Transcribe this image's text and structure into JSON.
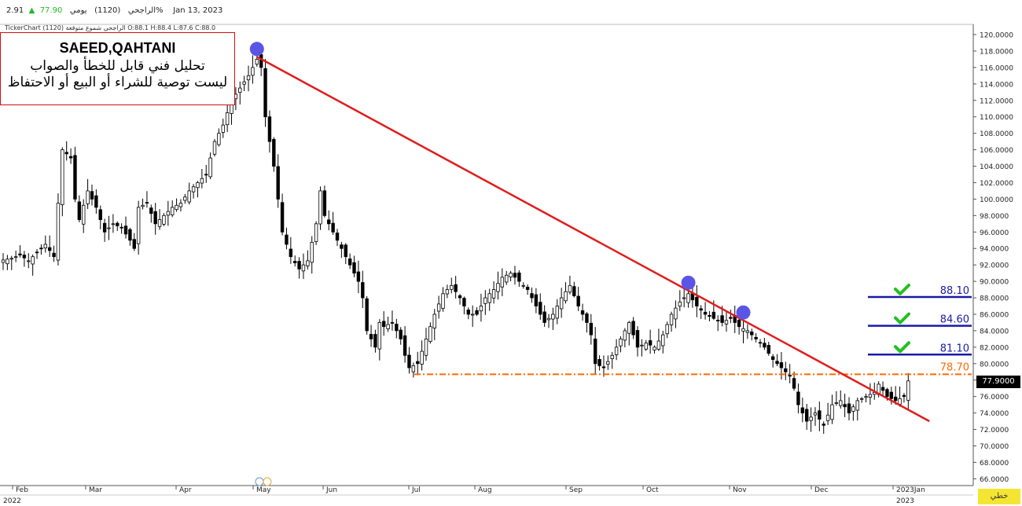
{
  "header": {
    "name": "الراجحي",
    "code": "(1120)",
    "period": "يومي",
    "price": "77.90",
    "change": "2.91%",
    "date": "Jan 13, 2023",
    "subtitle": "TickerChart الراجحي شموع متوقعة (1120) O:88.1 H:88.4 L:87.6 C:88.0",
    "up_color": "#22b822"
  },
  "note": {
    "line1": "SAEED,QAHTANI",
    "line2": "تحليل فني قابل للخطأ والصواب",
    "line3": "ليست توصية للشراء أو البيع أو الاحتفاظ"
  },
  "badges": {
    "last_price": "77.9000",
    "mode": "خطي"
  },
  "chart_data": {
    "type": "candlestick",
    "y_axis": {
      "min": 65,
      "max": 121,
      "ticks": [
        "120.0000",
        "118.0000",
        "116.0000",
        "114.0000",
        "112.0000",
        "110.0000",
        "108.0000",
        "106.0000",
        "104.0000",
        "102.0000",
        "100.0000",
        "98.0000",
        "96.0000",
        "94.0000",
        "92.0000",
        "90.0000",
        "88.0000",
        "86.0000",
        "84.0000",
        "82.0000",
        "80.0000",
        "78.0000",
        "76.0000",
        "74.0000",
        "72.0000",
        "70.0000",
        "68.0000",
        "66.0000"
      ]
    },
    "x_axis": {
      "months": [
        "Feb",
        "Mar",
        "Apr",
        "May",
        "Jun",
        "Jul",
        "Aug",
        "Sep",
        "Oct",
        "Nov",
        "Dec",
        "2023Jan"
      ],
      "years": [
        "2022",
        "2023"
      ]
    },
    "close_path": [
      [
        0,
        92.6
      ],
      [
        2,
        92.8
      ],
      [
        4,
        93.2
      ],
      [
        6,
        92.5
      ],
      [
        8,
        93.5
      ],
      [
        10,
        94.5
      ],
      [
        12,
        93
      ],
      [
        13,
        99.5
      ],
      [
        14,
        106
      ],
      [
        16,
        105
      ],
      [
        17,
        100
      ],
      [
        18,
        97.5
      ],
      [
        20,
        101
      ],
      [
        22,
        99
      ],
      [
        24,
        96
      ],
      [
        26,
        97
      ],
      [
        28,
        96.5
      ],
      [
        30,
        95
      ],
      [
        31,
        94
      ],
      [
        32,
        99
      ],
      [
        34,
        99.5
      ],
      [
        36,
        97
      ],
      [
        38,
        98
      ],
      [
        40,
        99
      ],
      [
        42,
        99.5
      ],
      [
        44,
        101
      ],
      [
        46,
        102
      ],
      [
        48,
        103
      ],
      [
        50,
        107
      ],
      [
        52,
        109
      ],
      [
        54,
        112
      ],
      [
        56,
        113.5
      ],
      [
        58,
        115
      ],
      [
        60,
        117
      ],
      [
        61,
        116
      ],
      [
        62,
        110
      ],
      [
        63,
        107
      ],
      [
        64,
        104
      ],
      [
        65,
        100
      ],
      [
        66,
        96
      ],
      [
        68,
        93
      ],
      [
        70,
        91.5
      ],
      [
        72,
        92.5
      ],
      [
        74,
        97
      ],
      [
        75,
        101
      ],
      [
        76,
        98
      ],
      [
        78,
        96
      ],
      [
        80,
        94
      ],
      [
        82,
        92
      ],
      [
        84,
        90
      ],
      [
        85,
        88
      ],
      [
        86,
        84
      ],
      [
        88,
        82
      ],
      [
        89,
        85
      ],
      [
        90,
        84.5
      ],
      [
        92,
        85
      ],
      [
        94,
        83
      ],
      [
        95,
        81
      ],
      [
        96,
        79.5
      ],
      [
        98,
        80
      ],
      [
        100,
        83
      ],
      [
        102,
        86
      ],
      [
        104,
        88.5
      ],
      [
        106,
        89.5
      ],
      [
        108,
        88
      ],
      [
        110,
        86
      ],
      [
        112,
        86
      ],
      [
        114,
        88
      ],
      [
        116,
        89
      ],
      [
        118,
        90.5
      ],
      [
        120,
        91
      ],
      [
        122,
        90
      ],
      [
        124,
        89
      ],
      [
        126,
        87
      ],
      [
        128,
        85
      ],
      [
        130,
        86
      ],
      [
        132,
        88
      ],
      [
        134,
        89.5
      ],
      [
        136,
        87
      ],
      [
        138,
        85
      ],
      [
        139,
        83.5
      ],
      [
        140,
        80
      ],
      [
        142,
        79.5
      ],
      [
        144,
        81
      ],
      [
        146,
        83
      ],
      [
        148,
        85
      ],
      [
        150,
        82
      ],
      [
        152,
        82.5
      ],
      [
        154,
        82
      ],
      [
        156,
        83.5
      ],
      [
        158,
        86
      ],
      [
        160,
        87.5
      ],
      [
        162,
        88.5
      ],
      [
        164,
        87
      ],
      [
        166,
        86
      ],
      [
        168,
        85.5
      ],
      [
        170,
        85
      ],
      [
        172,
        85.5
      ],
      [
        174,
        84.5
      ],
      [
        176,
        84
      ],
      [
        178,
        83
      ],
      [
        180,
        82
      ],
      [
        182,
        80.5
      ],
      [
        184,
        79.5
      ],
      [
        186,
        78.5
      ],
      [
        187,
        77
      ],
      [
        188,
        75
      ],
      [
        189,
        74
      ],
      [
        190,
        73
      ],
      [
        192,
        74
      ],
      [
        194,
        72.5
      ],
      [
        196,
        75
      ],
      [
        198,
        75.5
      ],
      [
        200,
        74
      ],
      [
        202,
        75.5
      ],
      [
        204,
        76
      ],
      [
        206,
        76.5
      ],
      [
        207,
        77.5
      ],
      [
        209,
        76
      ],
      [
        211,
        75.5
      ],
      [
        213,
        76
      ],
      [
        214,
        77.9
      ]
    ],
    "levels": [
      {
        "value": "88.10",
        "color": "#1a1aa8",
        "checked": true
      },
      {
        "value": "84.60",
        "color": "#1a1aa8",
        "checked": true
      },
      {
        "value": "81.10",
        "color": "#1a1aa8",
        "checked": true
      },
      {
        "value": "78.70",
        "color": "#ff6a00",
        "checked": false
      }
    ],
    "trendline": {
      "from": [
        60,
        117.3
      ],
      "to": [
        219,
        73
      ],
      "color": "#e11c1c"
    },
    "touch_points": [
      60,
      162,
      175
    ],
    "last_price": 77.9
  }
}
